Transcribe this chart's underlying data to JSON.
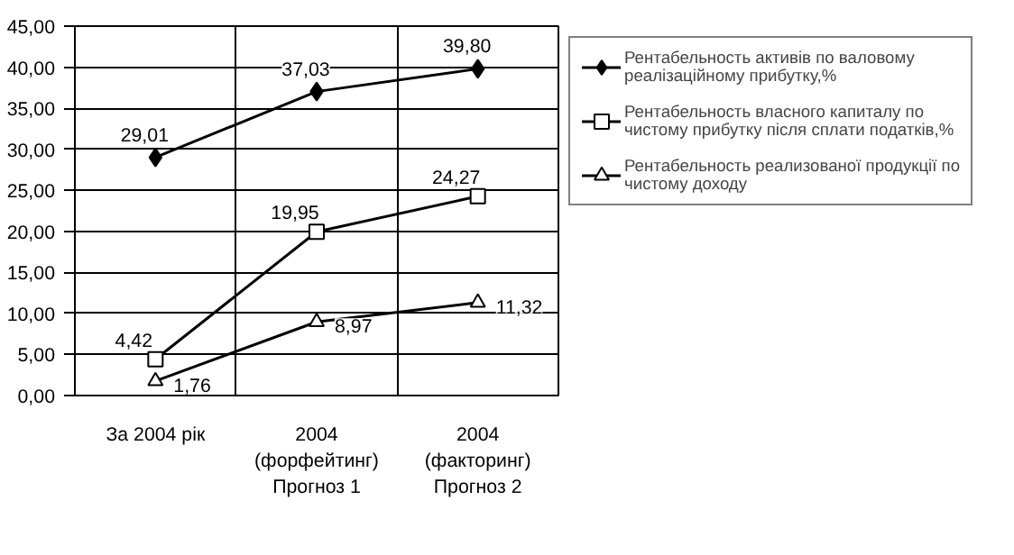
{
  "chart_data": {
    "type": "line",
    "categories": [
      "За 2004 рік",
      "2004\n(форфейтинг)\nПрогноз 1",
      "2004\n(факторинг)\nПрогноз 2"
    ],
    "series": [
      {
        "name": "Рентабельность активів по валовому реалізаційному прибутку,%",
        "color": "#000000",
        "marker": "diamond",
        "values": [
          29.01,
          37.03,
          39.8
        ],
        "value_labels": [
          "29,01",
          "37,03",
          "39,80"
        ]
      },
      {
        "name": "Рентабельность власного капиталу по чистому прибутку після сплати податків,%",
        "color": "#000000",
        "marker": "square",
        "values": [
          4.42,
          19.95,
          24.27
        ],
        "value_labels": [
          "4,42",
          "19,95",
          "24,27"
        ]
      },
      {
        "name": "Рентабельность реализованої продукції по чистому доходу",
        "color": "#000000",
        "marker": "triangle",
        "values": [
          1.76,
          8.97,
          11.32
        ],
        "value_labels": [
          "1,76",
          "8,97",
          "11,32"
        ]
      }
    ],
    "ylim": [
      0,
      45
    ],
    "yticks": [
      {
        "value": 0,
        "label": "0,00"
      },
      {
        "value": 5,
        "label": "5,00"
      },
      {
        "value": 10,
        "label": "10,00"
      },
      {
        "value": 15,
        "label": "15,00"
      },
      {
        "value": 20,
        "label": "20,00"
      },
      {
        "value": 25,
        "label": "25,00"
      },
      {
        "value": 30,
        "label": "30,00"
      },
      {
        "value": 35,
        "label": "35,00"
      },
      {
        "value": 40,
        "label": "40,00"
      },
      {
        "value": 45,
        "label": "45,00"
      }
    ],
    "grid": true,
    "legend": "right",
    "line_style": "solid"
  }
}
